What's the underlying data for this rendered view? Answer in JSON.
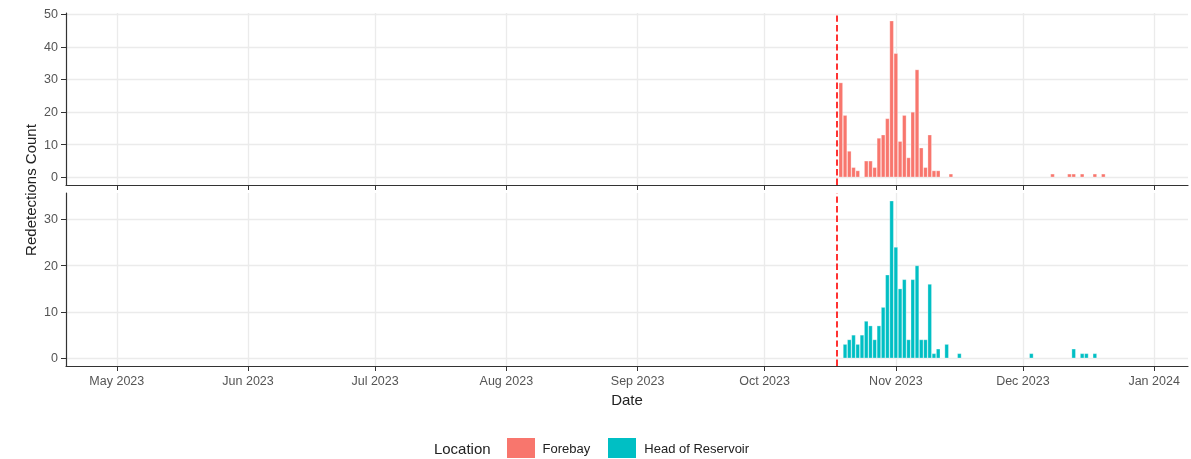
{
  "chart_data": [
    {
      "type": "bar",
      "ylabel": "Redetections Count",
      "xlim": [
        "2023-04-19",
        "2024-01-09"
      ],
      "xticks": [
        {
          "value": "2023-05-01",
          "label": null
        },
        {
          "value": "2023-06-01",
          "label": null
        },
        {
          "value": "2023-07-01",
          "label": null
        },
        {
          "value": "2023-08-01",
          "label": null
        },
        {
          "value": "2023-09-01",
          "label": null
        },
        {
          "value": "2023-10-01",
          "label": null
        },
        {
          "value": "2023-11-01",
          "label": null
        },
        {
          "value": "2023-12-01",
          "label": null
        },
        {
          "value": "2024-01-01",
          "label": null
        }
      ],
      "ylim": [
        -2.4,
        50.4
      ],
      "yticks": [
        0,
        10,
        20,
        30,
        40,
        50
      ],
      "tick_labels": "y",
      "grid": true,
      "legend": "bottom",
      "x": [
        "2023-10-19",
        "2023-10-20",
        "2023-10-21",
        "2023-10-22",
        "2023-10-23",
        "2023-10-25",
        "2023-10-26",
        "2023-10-27",
        "2023-10-28",
        "2023-10-29",
        "2023-10-30",
        "2023-10-31",
        "2023-11-01",
        "2023-11-02",
        "2023-11-03",
        "2023-11-04",
        "2023-11-05",
        "2023-11-06",
        "2023-11-07",
        "2023-11-08",
        "2023-11-09",
        "2023-11-10",
        "2023-11-11",
        "2023-11-14",
        "2023-12-08",
        "2023-12-12",
        "2023-12-13",
        "2023-12-15",
        "2023-12-18",
        "2023-12-20"
      ],
      "series": [
        {
          "name": "Forebay",
          "color": "#f8766d",
          "values": [
            29,
            19,
            8,
            3,
            2,
            5,
            5,
            3,
            12,
            13,
            18,
            48,
            38,
            11,
            19,
            6,
            20,
            33,
            9,
            3,
            13,
            2,
            2,
            1,
            1,
            1,
            1,
            1,
            1,
            1
          ]
        }
      ],
      "ref_lines": [
        {
          "axis": "x",
          "value": "2023-10-18",
          "color": "#ff0000",
          "line_style": "dashed"
        }
      ]
    },
    {
      "type": "bar",
      "xlabel": "Date",
      "legend_title": "Location",
      "xlim": [
        "2023-04-19",
        "2024-01-09"
      ],
      "xticks": [
        {
          "value": "2023-05-01",
          "label": "May 2023"
        },
        {
          "value": "2023-06-01",
          "label": "Jun 2023"
        },
        {
          "value": "2023-07-01",
          "label": "Jul 2023"
        },
        {
          "value": "2023-08-01",
          "label": "Aug 2023"
        },
        {
          "value": "2023-09-01",
          "label": "Sep 2023"
        },
        {
          "value": "2023-10-01",
          "label": "Oct 2023"
        },
        {
          "value": "2023-11-01",
          "label": "Nov 2023"
        },
        {
          "value": "2023-12-01",
          "label": "Dec 2023"
        },
        {
          "value": "2024-01-01",
          "label": "Jan 2024"
        }
      ],
      "ylim": [
        -1.7,
        35.7
      ],
      "yticks": [
        0,
        10,
        20,
        30
      ],
      "grid": true,
      "legend": "bottom",
      "x": [
        "2023-10-20",
        "2023-10-21",
        "2023-10-22",
        "2023-10-23",
        "2023-10-24",
        "2023-10-25",
        "2023-10-26",
        "2023-10-27",
        "2023-10-28",
        "2023-10-29",
        "2023-10-30",
        "2023-10-31",
        "2023-11-01",
        "2023-11-02",
        "2023-11-03",
        "2023-11-04",
        "2023-11-05",
        "2023-11-06",
        "2023-11-07",
        "2023-11-08",
        "2023-11-09",
        "2023-11-10",
        "2023-11-11",
        "2023-11-13",
        "2023-11-16",
        "2023-12-03",
        "2023-12-13",
        "2023-12-15",
        "2023-12-16",
        "2023-12-18"
      ],
      "series": [
        {
          "name": "Head of Reservoir",
          "color": "#00bfc4",
          "values": [
            3,
            4,
            5,
            3,
            5,
            8,
            7,
            4,
            7,
            11,
            18,
            34,
            24,
            15,
            17,
            4,
            17,
            20,
            4,
            4,
            16,
            1,
            2,
            3,
            1,
            1,
            2,
            1,
            1,
            1
          ]
        }
      ],
      "ref_lines": [
        {
          "axis": "x",
          "value": "2023-10-18",
          "color": "#ff0000",
          "line_style": "dashed"
        }
      ]
    }
  ]
}
